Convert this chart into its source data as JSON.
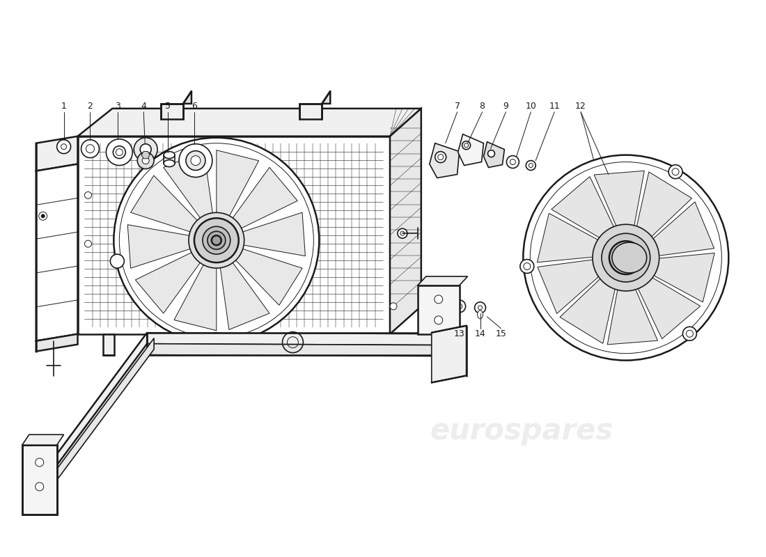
{
  "background_color": "#ffffff",
  "line_color": "#1a1a1a",
  "lw_main": 1.8,
  "lw_med": 1.2,
  "lw_thin": 0.7,
  "watermark_color": "#cccccc",
  "fig_w": 11.0,
  "fig_h": 8.0,
  "dpi": 100,
  "part_numbers_left": [
    "1",
    "2",
    "3",
    "4",
    "5",
    "6"
  ],
  "part_numbers_right": [
    "7",
    "8",
    "9",
    "10",
    "11",
    "12"
  ],
  "part_numbers_misc": [
    "13",
    "14",
    "15"
  ],
  "label_font_size": 9
}
